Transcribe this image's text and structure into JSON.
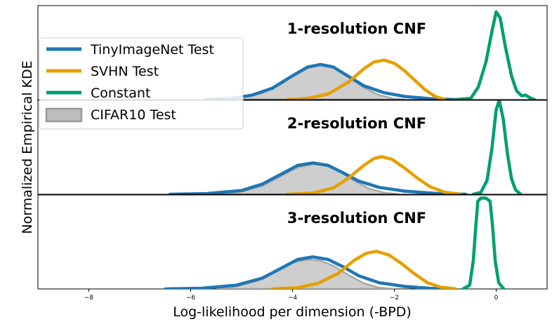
{
  "chart_data": {
    "type": "area",
    "xlabel": "Log-likelihood per dimension (-BPD)",
    "ylabel": "Normalized Empirical KDE",
    "xlim": [
      -9.0,
      1.0
    ],
    "x_ticks": [
      -8,
      -6,
      -4,
      -2,
      0
    ],
    "x_tick_labels": [
      "−8",
      "−6",
      "−4",
      "−2",
      "0"
    ],
    "grid": false,
    "legend_position": "upper-left",
    "legend": [
      {
        "label": "TinyImageNet Test",
        "color": "#1f77b4",
        "kind": "line"
      },
      {
        "label": "SVHN Test",
        "color": "#e69f00",
        "kind": "line"
      },
      {
        "label": "Constant",
        "color": "#009e73",
        "kind": "line"
      },
      {
        "label": "CIFAR10 Test",
        "color": "#bdbdbd",
        "kind": "patch"
      }
    ],
    "panels": [
      {
        "title": "1-resolution CNF",
        "series": [
          {
            "name": "TinyImageNet Test",
            "color": "#1f77b4",
            "kind": "line",
            "points": [
              [
                -5.7,
                0.0
              ],
              [
                -5.2,
                0.02
              ],
              [
                -4.8,
                0.07
              ],
              [
                -4.4,
                0.18
              ],
              [
                -4.0,
                0.38
              ],
              [
                -3.7,
                0.52
              ],
              [
                -3.45,
                0.56
              ],
              [
                -3.2,
                0.52
              ],
              [
                -2.9,
                0.37
              ],
              [
                -2.6,
                0.22
              ],
              [
                -2.2,
                0.11
              ],
              [
                -1.8,
                0.05
              ],
              [
                -1.3,
                0.015
              ],
              [
                -0.8,
                0.0
              ]
            ]
          },
          {
            "name": "SVHN Test",
            "color": "#e69f00",
            "kind": "line",
            "points": [
              [
                -4.1,
                0.0
              ],
              [
                -3.7,
                0.02
              ],
              [
                -3.3,
                0.09
              ],
              [
                -2.9,
                0.28
              ],
              [
                -2.6,
                0.49
              ],
              [
                -2.4,
                0.6
              ],
              [
                -2.2,
                0.63
              ],
              [
                -2.0,
                0.58
              ],
              [
                -1.8,
                0.46
              ],
              [
                -1.6,
                0.31
              ],
              [
                -1.4,
                0.16
              ],
              [
                -1.2,
                0.05
              ],
              [
                -1.0,
                0.0
              ]
            ]
          },
          {
            "name": "Constant",
            "color": "#009e73",
            "kind": "line",
            "points": [
              [
                -0.8,
                0.0
              ],
              [
                -0.5,
                0.02
              ],
              [
                -0.35,
                0.2
              ],
              [
                -0.2,
                0.6
              ],
              [
                -0.08,
                1.1
              ],
              [
                0.0,
                1.4
              ],
              [
                0.08,
                1.3
              ],
              [
                0.18,
                0.85
              ],
              [
                0.3,
                0.38
              ],
              [
                0.4,
                0.14
              ],
              [
                0.5,
                0.06
              ],
              [
                0.58,
                0.07
              ],
              [
                0.66,
                0.03
              ],
              [
                0.75,
                0.0
              ]
            ]
          },
          {
            "name": "CIFAR10 Test",
            "color": "#bdbdbd",
            "kind": "area",
            "points": [
              [
                -5.4,
                0.0
              ],
              [
                -5.0,
                0.03
              ],
              [
                -4.6,
                0.1
              ],
              [
                -4.2,
                0.26
              ],
              [
                -3.9,
                0.44
              ],
              [
                -3.6,
                0.54
              ],
              [
                -3.4,
                0.55
              ],
              [
                -3.15,
                0.5
              ],
              [
                -2.9,
                0.36
              ],
              [
                -2.6,
                0.19
              ],
              [
                -2.3,
                0.07
              ],
              [
                -2.0,
                0.015
              ],
              [
                -1.8,
                0.0
              ]
            ]
          }
        ]
      },
      {
        "title": "2-resolution CNF",
        "series": [
          {
            "name": "TinyImageNet Test",
            "color": "#1f77b4",
            "kind": "line",
            "points": [
              [
                -6.4,
                0.0
              ],
              [
                -5.7,
                0.01
              ],
              [
                -5.0,
                0.06
              ],
              [
                -4.6,
                0.16
              ],
              [
                -4.2,
                0.33
              ],
              [
                -3.9,
                0.46
              ],
              [
                -3.6,
                0.5
              ],
              [
                -3.3,
                0.46
              ],
              [
                -3.0,
                0.34
              ],
              [
                -2.7,
                0.21
              ],
              [
                -2.3,
                0.11
              ],
              [
                -1.8,
                0.05
              ],
              [
                -1.2,
                0.015
              ],
              [
                -0.6,
                0.0
              ]
            ]
          },
          {
            "name": "SVHN Test",
            "color": "#e69f00",
            "kind": "line",
            "points": [
              [
                -4.1,
                0.0
              ],
              [
                -3.6,
                0.02
              ],
              [
                -3.2,
                0.1
              ],
              [
                -2.9,
                0.26
              ],
              [
                -2.6,
                0.46
              ],
              [
                -2.4,
                0.57
              ],
              [
                -2.25,
                0.6
              ],
              [
                -2.05,
                0.56
              ],
              [
                -1.8,
                0.42
              ],
              [
                -1.55,
                0.26
              ],
              [
                -1.3,
                0.12
              ],
              [
                -1.0,
                0.03
              ],
              [
                -0.7,
                0.0
              ]
            ]
          },
          {
            "name": "Constant",
            "color": "#009e73",
            "kind": "line",
            "points": [
              [
                -0.45,
                0.0
              ],
              [
                -0.3,
                0.03
              ],
              [
                -0.18,
                0.22
              ],
              [
                -0.08,
                0.75
              ],
              [
                0.0,
                1.35
              ],
              [
                0.06,
                1.5
              ],
              [
                0.14,
                1.2
              ],
              [
                0.22,
                0.65
              ],
              [
                0.3,
                0.25
              ],
              [
                0.38,
                0.07
              ],
              [
                0.48,
                0.0
              ]
            ]
          },
          {
            "name": "CIFAR10 Test",
            "color": "#bdbdbd",
            "kind": "area",
            "points": [
              [
                -5.4,
                0.0
              ],
              [
                -5.0,
                0.04
              ],
              [
                -4.6,
                0.13
              ],
              [
                -4.2,
                0.3
              ],
              [
                -3.9,
                0.43
              ],
              [
                -3.6,
                0.48
              ],
              [
                -3.35,
                0.46
              ],
              [
                -3.1,
                0.38
              ],
              [
                -2.8,
                0.22
              ],
              [
                -2.5,
                0.09
              ],
              [
                -2.2,
                0.025
              ],
              [
                -1.9,
                0.0
              ]
            ]
          }
        ]
      },
      {
        "title": "3-resolution CNF",
        "series": [
          {
            "name": "TinyImageNet Test",
            "color": "#1f77b4",
            "kind": "line",
            "points": [
              [
                -6.5,
                0.0
              ],
              [
                -5.8,
                0.01
              ],
              [
                -5.1,
                0.06
              ],
              [
                -4.6,
                0.17
              ],
              [
                -4.2,
                0.34
              ],
              [
                -3.9,
                0.47
              ],
              [
                -3.6,
                0.51
              ],
              [
                -3.3,
                0.47
              ],
              [
                -3.0,
                0.35
              ],
              [
                -2.7,
                0.21
              ],
              [
                -2.3,
                0.1
              ],
              [
                -1.8,
                0.04
              ],
              [
                -1.3,
                0.01
              ],
              [
                -0.9,
                0.0
              ]
            ]
          },
          {
            "name": "SVHN Test",
            "color": "#e69f00",
            "kind": "line",
            "points": [
              [
                -4.4,
                0.0
              ],
              [
                -3.9,
                0.02
              ],
              [
                -3.5,
                0.09
              ],
              [
                -3.1,
                0.25
              ],
              [
                -2.8,
                0.45
              ],
              [
                -2.55,
                0.57
              ],
              [
                -2.35,
                0.6
              ],
              [
                -2.1,
                0.54
              ],
              [
                -1.85,
                0.4
              ],
              [
                -1.6,
                0.24
              ],
              [
                -1.35,
                0.1
              ],
              [
                -1.1,
                0.03
              ],
              [
                -0.8,
                0.0
              ]
            ]
          },
          {
            "name": "Constant",
            "color": "#009e73",
            "kind": "line",
            "points": [
              [
                -0.65,
                0.0
              ],
              [
                -0.52,
                0.06
              ],
              [
                -0.45,
                0.45
              ],
              [
                -0.4,
                1.0
              ],
              [
                -0.36,
                1.4
              ],
              [
                -0.3,
                1.45
              ],
              [
                -0.2,
                1.45
              ],
              [
                -0.12,
                1.4
              ],
              [
                -0.07,
                1.0
              ],
              [
                -0.02,
                0.45
              ],
              [
                0.05,
                0.1
              ],
              [
                0.15,
                0.0
              ]
            ]
          },
          {
            "name": "CIFAR10 Test",
            "color": "#bdbdbd",
            "kind": "area",
            "points": [
              [
                -5.5,
                0.0
              ],
              [
                -5.1,
                0.04
              ],
              [
                -4.7,
                0.13
              ],
              [
                -4.3,
                0.29
              ],
              [
                -4.0,
                0.42
              ],
              [
                -3.7,
                0.47
              ],
              [
                -3.45,
                0.45
              ],
              [
                -3.2,
                0.37
              ],
              [
                -2.9,
                0.22
              ],
              [
                -2.6,
                0.09
              ],
              [
                -2.3,
                0.02
              ],
              [
                -2.0,
                0.0
              ]
            ]
          }
        ]
      }
    ]
  }
}
